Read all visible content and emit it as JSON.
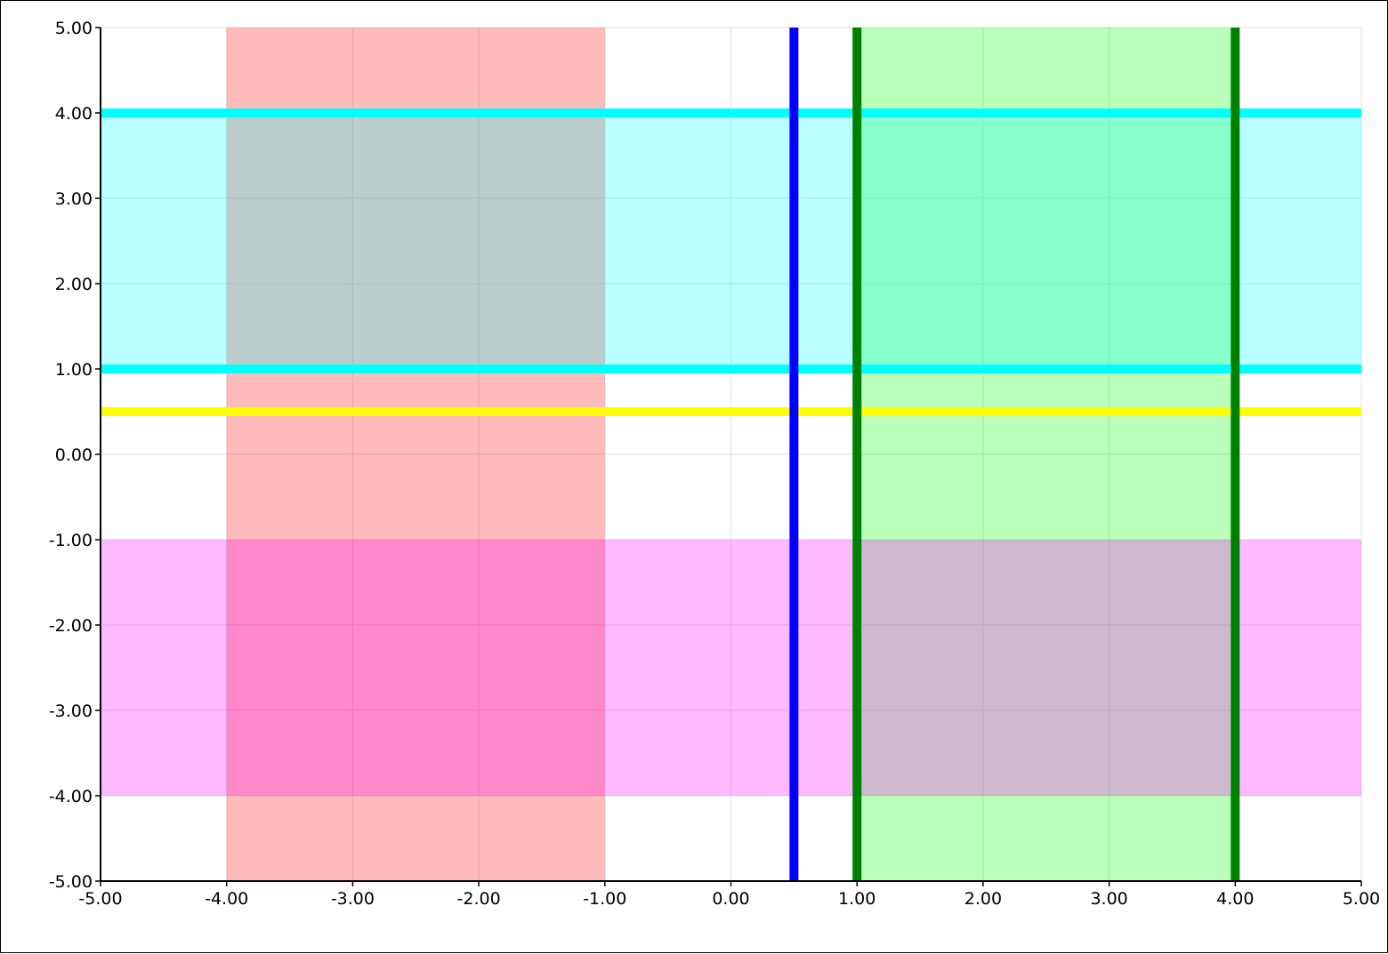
{
  "chart_data": {
    "type": "area",
    "title": "",
    "xlabel": "",
    "ylabel": "",
    "xlim": [
      -5,
      5
    ],
    "ylim": [
      -5,
      5
    ],
    "grid": true,
    "legend": "none",
    "x_ticks": [
      -5,
      -4,
      -3,
      -2,
      -1,
      0,
      1,
      2,
      3,
      4,
      5
    ],
    "y_ticks": [
      -5,
      -4,
      -3,
      -2,
      -1,
      0,
      1,
      2,
      3,
      4,
      5
    ],
    "x_tick_labels": [
      "-5.00",
      "-4.00",
      "-3.00",
      "-2.00",
      "-1.00",
      "0.00",
      "1.00",
      "2.00",
      "3.00",
      "4.00",
      "5.00"
    ],
    "y_tick_labels": [
      "-5.00",
      "-4.00",
      "-3.00",
      "-2.00",
      "-1.00",
      "0.00",
      "1.00",
      "2.00",
      "3.00",
      "4.00",
      "5.00"
    ],
    "vertical_bands": [
      {
        "x0": -4,
        "x1": -1,
        "color": "#ff0000",
        "opacity": 0.27
      },
      {
        "x0": 1,
        "x1": 4,
        "color": "#00ff00",
        "opacity": 0.27
      }
    ],
    "horizontal_bands": [
      {
        "y0": 1,
        "y1": 4,
        "color": "#00ffff",
        "opacity": 0.27
      },
      {
        "y0": -4,
        "y1": -1,
        "color": "#ff00ff",
        "opacity": 0.27
      }
    ],
    "vertical_lines": [
      {
        "x": 0.5,
        "color": "#0000ff"
      },
      {
        "x": 1,
        "color": "#008000"
      },
      {
        "x": 4,
        "color": "#008000"
      }
    ],
    "horizontal_lines": [
      {
        "y": 4,
        "color": "#00ffff"
      },
      {
        "y": 1,
        "color": "#00ffff"
      },
      {
        "y": 0.5,
        "color": "#ffff00"
      }
    ]
  }
}
